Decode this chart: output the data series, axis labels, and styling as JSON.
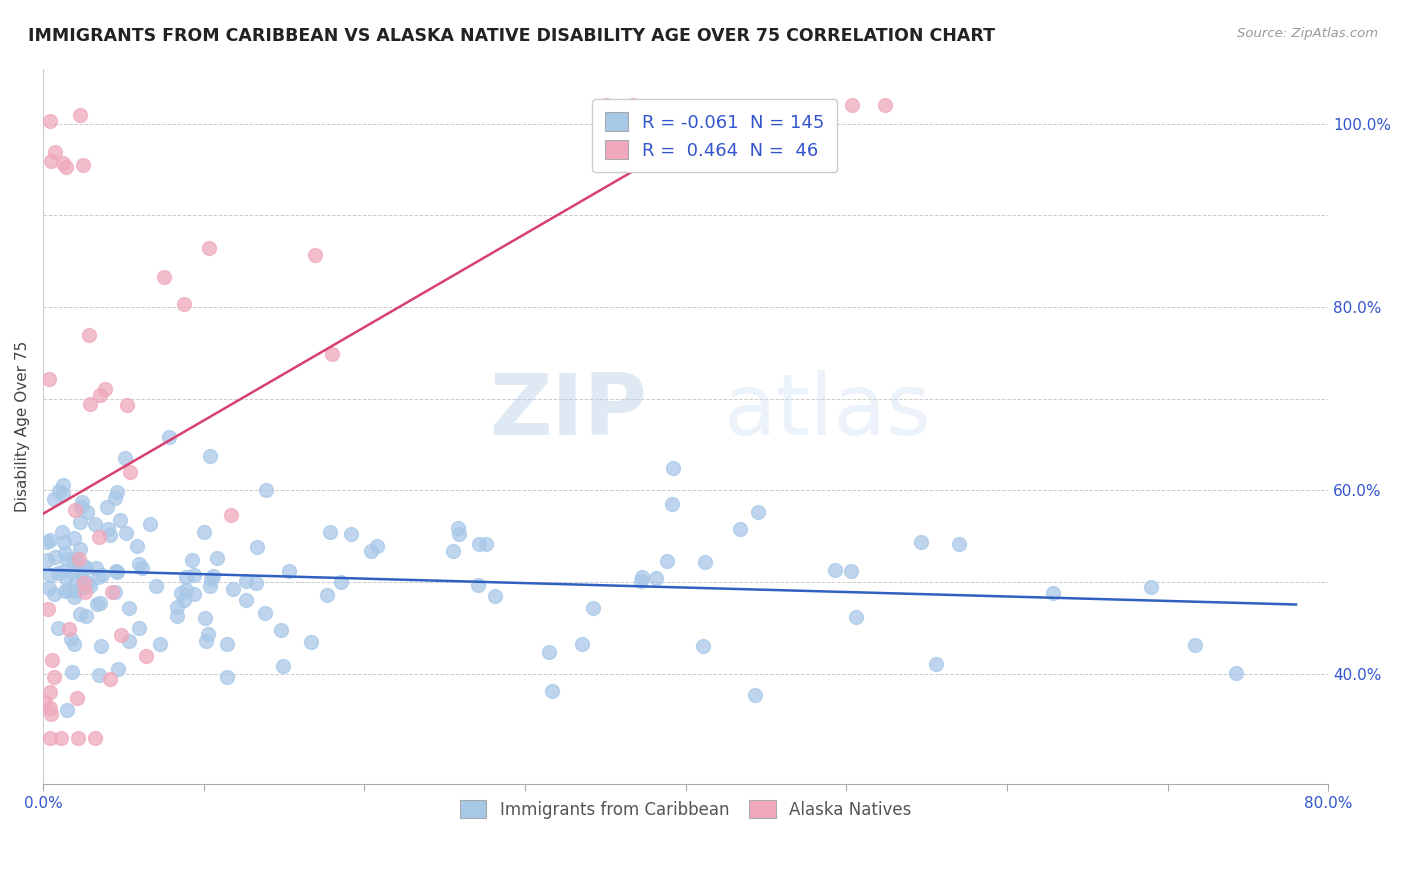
{
  "title": "IMMIGRANTS FROM CARIBBEAN VS ALASKA NATIVE DISABILITY AGE OVER 75 CORRELATION CHART",
  "source": "Source: ZipAtlas.com",
  "ylabel": "Disability Age Over 75",
  "legend_blue_r": "-0.061",
  "legend_blue_n": "145",
  "legend_pink_r": "0.464",
  "legend_pink_n": "46",
  "legend_label_blue": "Immigrants from Caribbean",
  "legend_label_pink": "Alaska Natives",
  "blue_color": "#a8c8e8",
  "pink_color": "#f0a8bc",
  "blue_line_color": "#3060c0",
  "pink_line_color": "#d84070",
  "watermark_zip": "ZIP",
  "watermark_atlas": "atlas",
  "xmin": 0.0,
  "xmax": 0.8,
  "ymin": 0.28,
  "ymax": 1.06,
  "blue_seed": 123,
  "pink_seed": 456
}
